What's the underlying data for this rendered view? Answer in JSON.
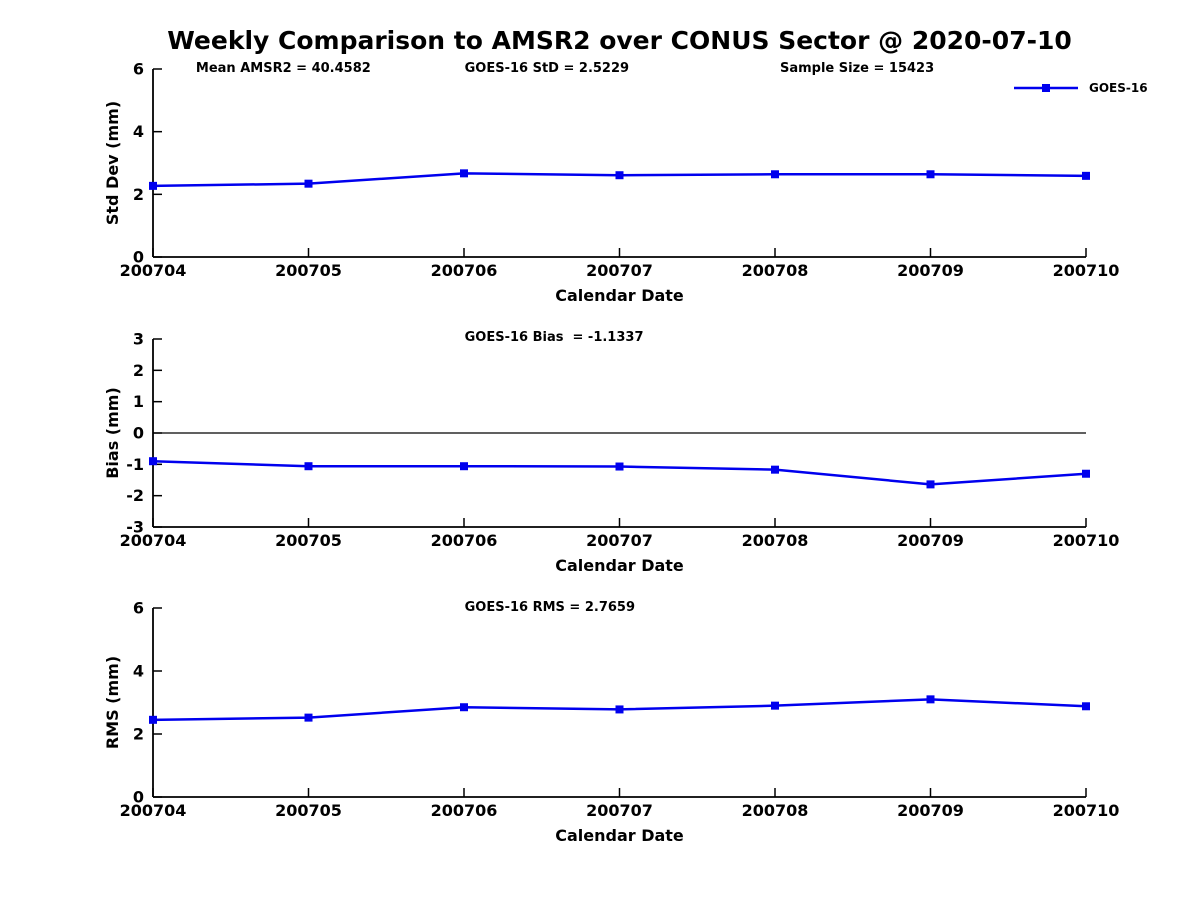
{
  "title": "Weekly Comparison to AMSR2 over CONUS Sector @ 2020-07-10",
  "colors": {
    "accent": "#0000EE",
    "text": "#000000",
    "background": "#ffffff"
  },
  "legend": {
    "label": "GOES-16",
    "position": "top-right"
  },
  "chart_data": [
    {
      "type": "line",
      "name": "std-dev-panel",
      "title": "",
      "xlabel": "Calendar Date",
      "ylabel": "Std Dev (mm)",
      "ylim": [
        0,
        6
      ],
      "yticks": [
        0,
        2,
        4,
        6
      ],
      "grid": false,
      "zero_line": false,
      "categories": [
        "200704",
        "200705",
        "200706",
        "200707",
        "200708",
        "200709",
        "200710"
      ],
      "series": [
        {
          "name": "GOES-16",
          "values": [
            2.27,
            2.34,
            2.67,
            2.61,
            2.64,
            2.64,
            2.59
          ]
        }
      ],
      "annotations": [
        {
          "text": "Mean AMSR2 = 40.4582",
          "xfrac": 0.046
        },
        {
          "text": "GOES-16 StD = 2.5229",
          "xfrac": 0.334
        },
        {
          "text": "Sample Size = 15423",
          "xfrac": 0.672
        }
      ]
    },
    {
      "type": "line",
      "name": "bias-panel",
      "title": "",
      "xlabel": "Calendar Date",
      "ylabel": "Bias (mm)",
      "ylim": [
        -3,
        3
      ],
      "yticks": [
        -3,
        -2,
        -1,
        0,
        1,
        2,
        3
      ],
      "grid": false,
      "zero_line": true,
      "categories": [
        "200704",
        "200705",
        "200706",
        "200707",
        "200708",
        "200709",
        "200710"
      ],
      "series": [
        {
          "name": "GOES-16",
          "values": [
            -0.9,
            -1.06,
            -1.06,
            -1.07,
            -1.17,
            -1.64,
            -1.3
          ]
        }
      ],
      "annotations": [
        {
          "text": "GOES-16 Bias  = -1.1337",
          "xfrac": 0.334
        }
      ]
    },
    {
      "type": "line",
      "name": "rms-panel",
      "title": "",
      "xlabel": "Calendar Date",
      "ylabel": "RMS (mm)",
      "ylim": [
        0,
        6
      ],
      "yticks": [
        0,
        2,
        4,
        6
      ],
      "grid": false,
      "zero_line": false,
      "categories": [
        "200704",
        "200705",
        "200706",
        "200707",
        "200708",
        "200709",
        "200710"
      ],
      "series": [
        {
          "name": "GOES-16",
          "values": [
            2.45,
            2.52,
            2.85,
            2.78,
            2.9,
            3.1,
            2.88
          ]
        }
      ],
      "annotations": [
        {
          "text": "GOES-16 RMS = 2.7659",
          "xfrac": 0.334
        }
      ]
    }
  ]
}
